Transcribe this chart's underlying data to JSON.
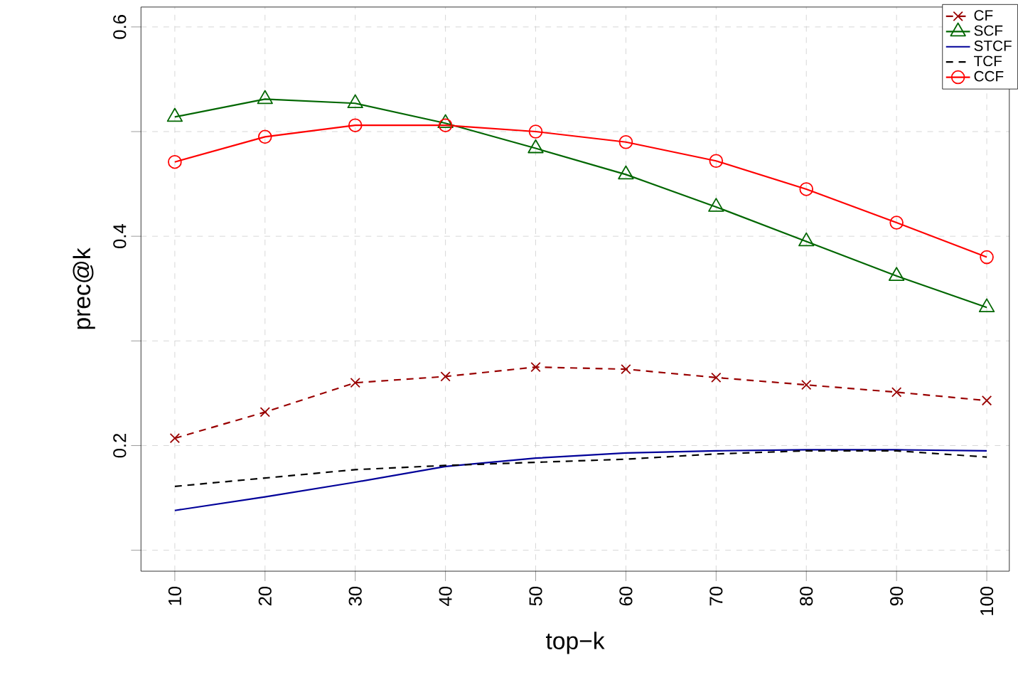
{
  "chart_data": {
    "type": "line",
    "xlabel": "top−k",
    "ylabel": "prec@k",
    "x": [
      10,
      20,
      30,
      40,
      50,
      60,
      70,
      80,
      90,
      100
    ],
    "xlim": [
      6.25,
      102.5
    ],
    "xticks": [
      10,
      20,
      30,
      40,
      50,
      60,
      70,
      80,
      90,
      100
    ],
    "ylim": [
      0.08,
      0.619
    ],
    "yticks": [
      {
        "value": 0.1,
        "label": null
      },
      0.2,
      {
        "value": 0.3,
        "label": null
      },
      0.4,
      {
        "value": 0.5,
        "label": null
      },
      0.6
    ],
    "grid": true,
    "legend": "top right",
    "series": [
      {
        "name": "CF",
        "color": "#990000",
        "marker": "cross",
        "line_style": "dashed",
        "values": [
          0.207,
          0.232,
          0.26,
          0.266,
          0.275,
          0.273,
          0.265,
          0.258,
          0.251,
          0.243
        ]
      },
      {
        "name": "SCF",
        "color": "#006600",
        "marker": "triangle",
        "line_style": "solid",
        "values": [
          0.514,
          0.531,
          0.527,
          0.508,
          0.484,
          0.459,
          0.428,
          0.395,
          0.362,
          0.332
        ]
      },
      {
        "name": "STCF",
        "color": "#000099",
        "marker": "none",
        "line_style": "solid",
        "values": [
          0.138,
          0.151,
          0.165,
          0.18,
          0.188,
          0.193,
          0.195,
          0.196,
          0.196,
          0.195
        ]
      },
      {
        "name": "TCF",
        "color": "#000000",
        "marker": "none",
        "line_style": "dashed",
        "values": [
          0.161,
          0.169,
          0.177,
          0.181,
          0.184,
          0.187,
          0.192,
          0.195,
          0.195,
          0.189
        ]
      },
      {
        "name": "CCF",
        "color": "#ff0000",
        "marker": "circle",
        "line_style": "solid",
        "values": [
          0.471,
          0.495,
          0.506,
          0.506,
          0.5,
          0.49,
          0.472,
          0.445,
          0.413,
          0.38
        ]
      }
    ]
  }
}
